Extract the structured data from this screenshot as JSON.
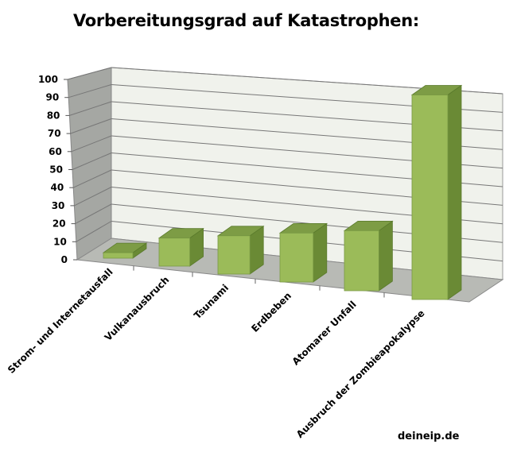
{
  "chart_data": {
    "type": "bar",
    "variant": "3d-column",
    "title": "Vorbereitungsgrad auf Katastrophen:",
    "categories": [
      "Strom- und Internetausfall",
      "Vulkanausbruch",
      "Tsunami",
      "Erdbeben",
      "Atomarer Unfall",
      "Ausbruch der Zombieapokalypse"
    ],
    "values": [
      3,
      15,
      20,
      25,
      30,
      100
    ],
    "ylim": [
      0,
      100
    ],
    "yticks": [
      "0",
      "10",
      "20",
      "30",
      "40",
      "50",
      "60",
      "70",
      "80",
      "90",
      "100"
    ],
    "grid": true,
    "xlabel": "",
    "ylabel": "",
    "colors": {
      "front": "#9bbb59",
      "side": "#6a8a35",
      "top": "#7d9c45",
      "wall": "#f0f2ec",
      "leftwall": "#a5a7a3",
      "floor": "#b8bab5"
    }
  },
  "credit": "deineip.de"
}
